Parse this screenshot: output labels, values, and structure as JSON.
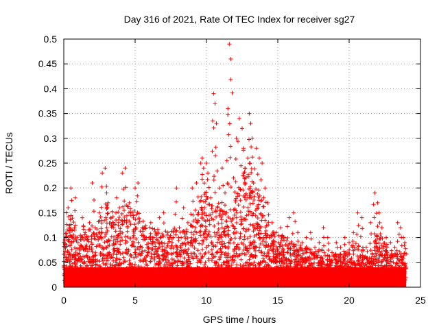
{
  "chart_data": {
    "type": "scatter",
    "title": "Day 316 of 2021, Rate Of TEC Index for receiver sg27",
    "xlabel": "GPS time / hours",
    "ylabel": "ROTI / TECUs",
    "xlim": [
      0,
      25
    ],
    "ylim": [
      0,
      0.5
    ],
    "xticks": [
      0,
      5,
      10,
      15,
      20,
      25
    ],
    "yticks": [
      0,
      0.05,
      0.1,
      0.15,
      0.2,
      0.25,
      0.3,
      0.35,
      0.4,
      0.45,
      0.5
    ],
    "grid": true,
    "marker": "plus",
    "colors": {
      "points": "#ff0000",
      "grid": "#a0a0a0",
      "axes": "#000000"
    },
    "series": [
      {
        "x": [
          0.1,
          0.2,
          0.3,
          0.4,
          0.5,
          0.6,
          0.8,
          1.0,
          1.3,
          1.5,
          1.8,
          2.0,
          2.2,
          2.5,
          2.7,
          2.9,
          3.0,
          3.1,
          3.3,
          3.5,
          3.7,
          3.9,
          4.1,
          4.3,
          4.4,
          4.6,
          4.8,
          5.0,
          5.2,
          5.5,
          5.8,
          6.1,
          6.4,
          6.7,
          7.0,
          7.3,
          7.6,
          7.9,
          8.1,
          8.4,
          8.7,
          9.0,
          9.3,
          9.6,
          9.7,
          9.8,
          9.9,
          10.0,
          10.1,
          10.3,
          10.5,
          10.6,
          10.7,
          10.9,
          11.1,
          11.3,
          11.5,
          11.6,
          11.7,
          11.9,
          12.1,
          12.3,
          12.5,
          12.6,
          12.7,
          12.9,
          13.0,
          13.1,
          13.2,
          13.3,
          13.5,
          13.7,
          13.9,
          14.1,
          14.3,
          14.6,
          14.9,
          15.2,
          15.5,
          15.8,
          16.1,
          16.4,
          16.7,
          17.0,
          17.3,
          17.6,
          17.9,
          18.2,
          18.5,
          18.8,
          19.1,
          19.4,
          19.7,
          20.0,
          20.3,
          20.6,
          20.9,
          21.2,
          21.5,
          21.8,
          22.0,
          22.1,
          22.3,
          22.6,
          22.9,
          23.2,
          23.4,
          23.6,
          23.8,
          23.9
        ],
        "y": [
          0.06,
          0.15,
          0.16,
          0.12,
          0.2,
          0.1,
          0.18,
          0.09,
          0.14,
          0.11,
          0.13,
          0.21,
          0.12,
          0.15,
          0.23,
          0.24,
          0.19,
          0.17,
          0.14,
          0.12,
          0.18,
          0.16,
          0.23,
          0.24,
          0.13,
          0.17,
          0.15,
          0.2,
          0.21,
          0.12,
          0.1,
          0.13,
          0.09,
          0.14,
          0.15,
          0.11,
          0.09,
          0.2,
          0.12,
          0.16,
          0.13,
          0.2,
          0.21,
          0.25,
          0.26,
          0.24,
          0.19,
          0.25,
          0.23,
          0.18,
          0.39,
          0.37,
          0.33,
          0.2,
          0.24,
          0.19,
          0.36,
          0.49,
          0.46,
          0.22,
          0.3,
          0.34,
          0.32,
          0.28,
          0.24,
          0.26,
          0.35,
          0.33,
          0.3,
          0.21,
          0.28,
          0.26,
          0.25,
          0.2,
          0.17,
          0.13,
          0.11,
          0.12,
          0.1,
          0.14,
          0.15,
          0.11,
          0.09,
          0.1,
          0.11,
          0.08,
          0.09,
          0.12,
          0.1,
          0.07,
          0.09,
          0.08,
          0.1,
          0.09,
          0.11,
          0.15,
          0.14,
          0.08,
          0.13,
          0.19,
          0.17,
          0.15,
          0.12,
          0.1,
          0.09,
          0.08,
          0.13,
          0.12,
          0.1,
          0.09
        ]
      }
    ],
    "envelope": {
      "x": [
        0,
        0.5,
        1,
        1.5,
        2,
        2.5,
        3,
        3.5,
        4,
        4.5,
        5,
        5.5,
        6,
        6.5,
        7,
        7.5,
        8,
        8.5,
        9,
        9.5,
        10,
        10.5,
        11,
        11.5,
        12,
        12.5,
        13,
        13.5,
        14,
        14.5,
        15,
        15.5,
        16,
        16.5,
        17,
        17.5,
        18,
        18.5,
        19,
        19.5,
        20,
        20.5,
        21,
        21.5,
        22,
        22.5,
        23,
        23.5,
        24
      ],
      "y": [
        0.09,
        0.13,
        0.1,
        0.11,
        0.1,
        0.12,
        0.15,
        0.13,
        0.14,
        0.15,
        0.14,
        0.12,
        0.11,
        0.1,
        0.1,
        0.1,
        0.11,
        0.1,
        0.13,
        0.16,
        0.17,
        0.15,
        0.14,
        0.13,
        0.16,
        0.2,
        0.22,
        0.19,
        0.15,
        0.1,
        0.1,
        0.09,
        0.09,
        0.08,
        0.07,
        0.07,
        0.07,
        0.06,
        0.06,
        0.06,
        0.07,
        0.08,
        0.07,
        0.05,
        0.1,
        0.08,
        0.06,
        0.06,
        0.06
      ],
      "floor": [
        0.01,
        0.01,
        0.01,
        0.01,
        0.01,
        0.01,
        0.01,
        0.01,
        0.01,
        0.01,
        0.01,
        0.01,
        0.01,
        0.01,
        0.01,
        0.01,
        0.01,
        0.01,
        0.01,
        0.01,
        0.01,
        0.01,
        0.01,
        0.01,
        0.01,
        0.01,
        0.01,
        0.01,
        0.01,
        0.01,
        0.01,
        0.01,
        0.01,
        0.01,
        0.01,
        0.01,
        0.01,
        0.01,
        0.01,
        0.01,
        0.01,
        0.01,
        0.01,
        0.01,
        0.01,
        0.01,
        0.01,
        0.01,
        0.01
      ]
    }
  }
}
